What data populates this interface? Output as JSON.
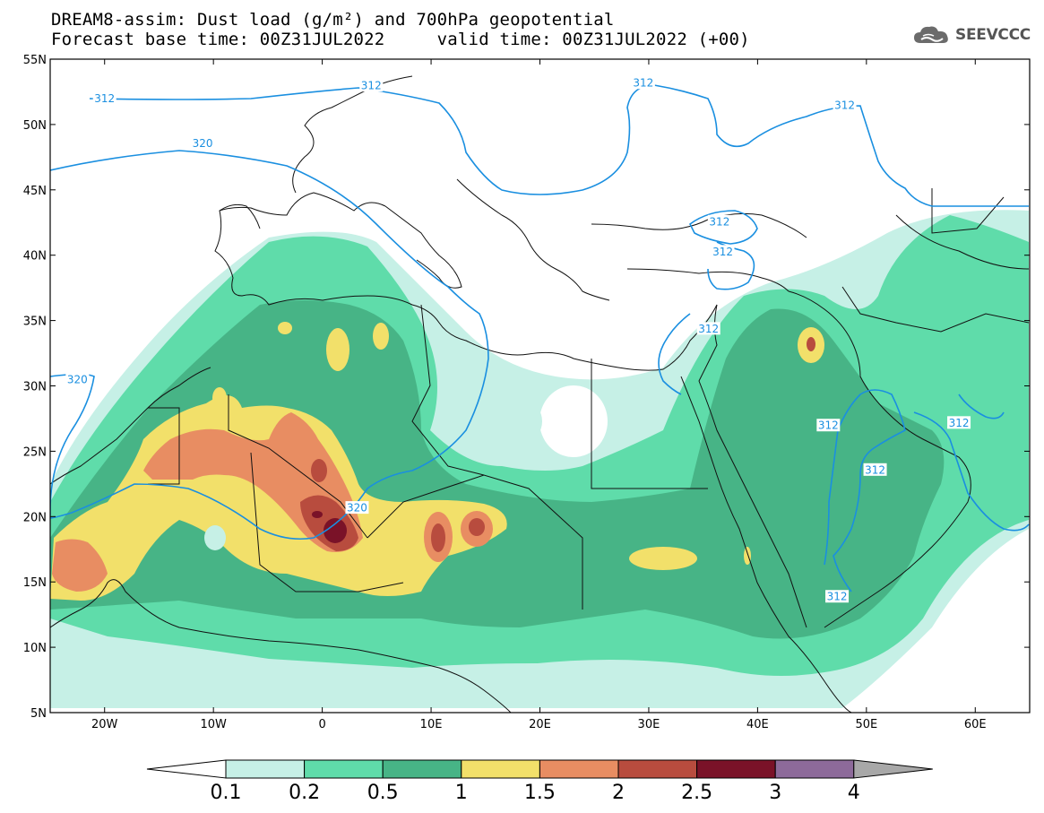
{
  "header": {
    "title_line1": "DREAM8-assim: Dust load (g/m²) and 700hPa geopotential",
    "title_line2": "Forecast base time: 00Z31JUL2022     valid time: 00Z31JUL2022 (+00)"
  },
  "logo": {
    "text": "SEEVCCC",
    "icon": "cloud-icon"
  },
  "map": {
    "lon_range": [
      -25,
      65
    ],
    "lat_range": [
      5,
      55
    ],
    "lat_ticks": [
      {
        "v": 55,
        "label": "55N"
      },
      {
        "v": 50,
        "label": "50N"
      },
      {
        "v": 45,
        "label": "45N"
      },
      {
        "v": 40,
        "label": "40N"
      },
      {
        "v": 35,
        "label": "35N"
      },
      {
        "v": 30,
        "label": "30N"
      },
      {
        "v": 25,
        "label": "25N"
      },
      {
        "v": 20,
        "label": "20N"
      },
      {
        "v": 15,
        "label": "15N"
      },
      {
        "v": 10,
        "label": "10N"
      },
      {
        "v": 5,
        "label": "5N"
      }
    ],
    "lon_ticks": [
      {
        "v": -20,
        "label": "20W"
      },
      {
        "v": -10,
        "label": "10W"
      },
      {
        "v": 0,
        "label": "0"
      },
      {
        "v": 10,
        "label": "10E"
      },
      {
        "v": 20,
        "label": "20E"
      },
      {
        "v": 30,
        "label": "30E"
      },
      {
        "v": 40,
        "label": "40E"
      },
      {
        "v": 50,
        "label": "50E"
      },
      {
        "v": 60,
        "label": "60E"
      }
    ],
    "contour_labels": [
      {
        "text": "312",
        "lon": -20,
        "lat": 52
      },
      {
        "text": "312",
        "lon": 4.5,
        "lat": 53
      },
      {
        "text": "312",
        "lon": 29.5,
        "lat": 53.2
      },
      {
        "text": "312",
        "lon": 48,
        "lat": 51.5
      },
      {
        "text": "320",
        "lon": -11,
        "lat": 48.6
      },
      {
        "text": "312",
        "lon": 36.5,
        "lat": 42.6
      },
      {
        "text": "312",
        "lon": 36.8,
        "lat": 40.3
      },
      {
        "text": "312",
        "lon": 35.5,
        "lat": 34.4
      },
      {
        "text": "320",
        "lon": -22.5,
        "lat": 30.5
      },
      {
        "text": "312",
        "lon": 46.5,
        "lat": 27.0
      },
      {
        "text": "312",
        "lon": 58.5,
        "lat": 27.2
      },
      {
        "text": "312",
        "lon": 50.8,
        "lat": 23.6
      },
      {
        "text": "320",
        "lon": 3.2,
        "lat": 20.7
      },
      {
        "text": "312",
        "lon": 47.3,
        "lat": 13.9
      }
    ]
  },
  "colorbar": {
    "colors": [
      "#c6f0e6",
      "#5fdcaa",
      "#47b486",
      "#f2e06a",
      "#e88d62",
      "#b84c3e",
      "#7a1228",
      "#8d6a9a",
      "#a8a8a8"
    ],
    "labels": [
      "0.1",
      "0.2",
      "0.5",
      "1",
      "1.5",
      "2",
      "2.5",
      "3",
      "4"
    ]
  }
}
